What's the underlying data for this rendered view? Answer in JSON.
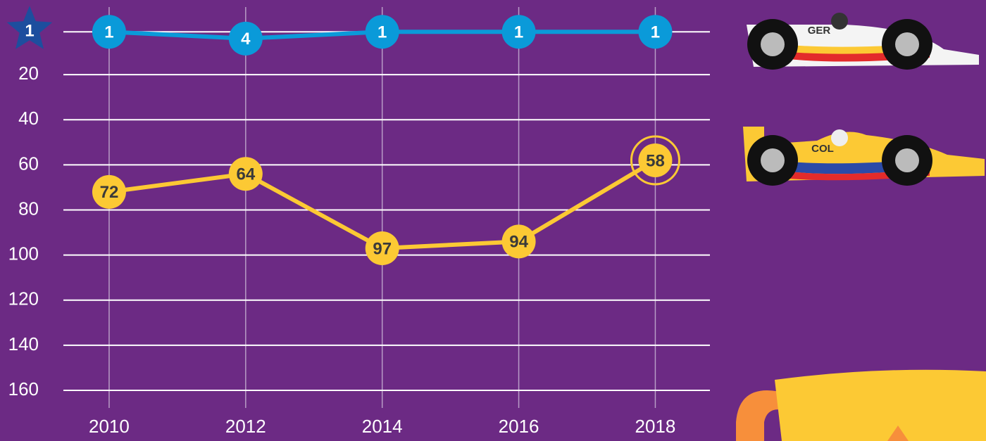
{
  "chart_data": {
    "type": "line",
    "x": [
      2010,
      2012,
      2014,
      2016,
      2018
    ],
    "series": [
      {
        "name": "GER",
        "color": "#0a9ad9",
        "values": [
          1,
          4,
          1,
          1,
          1
        ]
      },
      {
        "name": "COL",
        "color": "#fcc934",
        "values": [
          72,
          64,
          97,
          94,
          58
        ]
      }
    ],
    "xlim": [
      2009.33,
      2018.8
    ],
    "xticks": [
      2010,
      2012,
      2014,
      2016,
      2018
    ],
    "ylim": [
      0,
      160
    ],
    "yticks": [
      1,
      20,
      40,
      60,
      80,
      100,
      120,
      140,
      160
    ],
    "y_inverted": true,
    "grid": true
  }
}
